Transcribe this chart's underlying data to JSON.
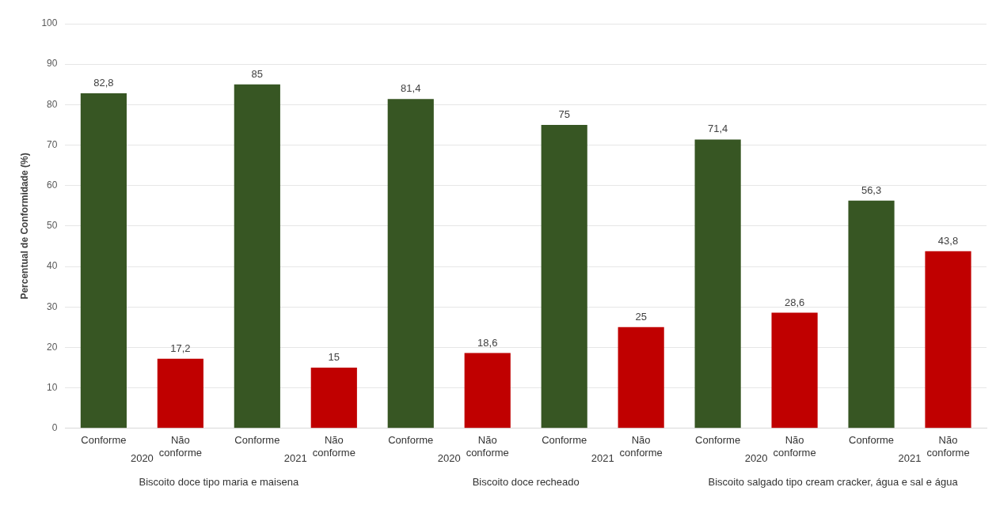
{
  "chart_data": {
    "type": "bar",
    "ylabel": "Percentual de Conformidade (%)",
    "categories": [
      "Conforme",
      "Não conforme",
      "Conforme",
      "Não conforme",
      "Conforme",
      "Não conforme",
      "Conforme",
      "Não conforme",
      "Conforme",
      "Não conforme",
      "Conforme",
      "Não conforme"
    ],
    "values": [
      82.8,
      17.2,
      85,
      15,
      81.4,
      18.6,
      75,
      25,
      71.4,
      28.6,
      56.3,
      43.8
    ],
    "value_labels": [
      "82,8",
      "17,2",
      "85",
      "15",
      "81,4",
      "18,6",
      "75",
      "25",
      "71,4",
      "28,6",
      "56,3",
      "43,8"
    ],
    "colors": [
      "#375623",
      "#c00000",
      "#375623",
      "#c00000",
      "#375623",
      "#c00000",
      "#375623",
      "#c00000",
      "#375623",
      "#c00000",
      "#375623",
      "#c00000"
    ],
    "ylim": [
      0,
      100
    ],
    "yticks": [
      0,
      10,
      20,
      30,
      40,
      50,
      60,
      70,
      80,
      90,
      100
    ],
    "grid": "y",
    "legend": false,
    "annotations": [
      "2020",
      "2021",
      "2020",
      "2021",
      "2020",
      "2021",
      "Biscoito doce tipo maria e maisena",
      "Biscoito doce recheado",
      "Biscoito salgado tipo cream cracker, água e sal e água"
    ]
  }
}
